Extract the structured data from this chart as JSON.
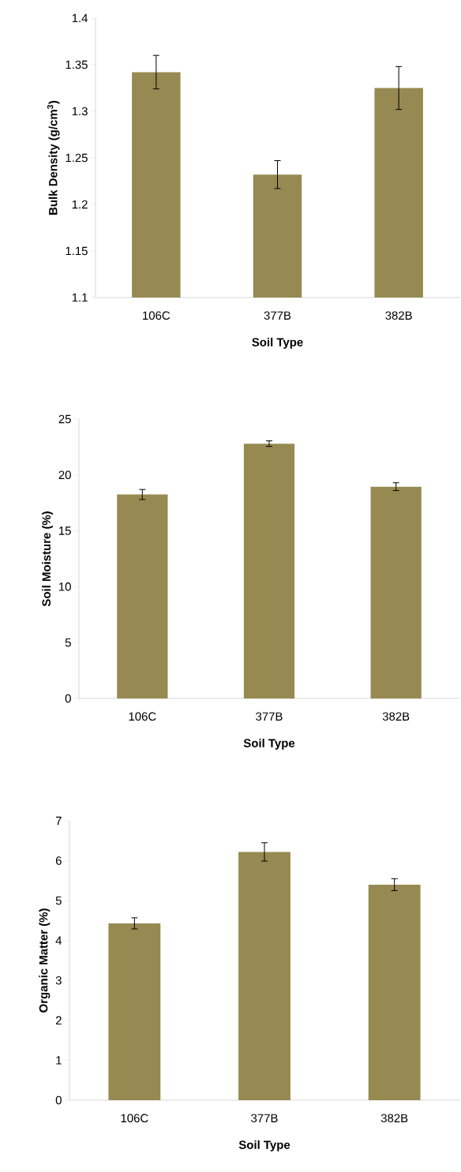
{
  "chart_data": [
    {
      "type": "bar",
      "categories": [
        "106C",
        "377B",
        "382B"
      ],
      "values": [
        1.342,
        1.232,
        1.325
      ],
      "errors": [
        0.018,
        0.015,
        0.023
      ],
      "color": "#968a52",
      "xlabel": "Soil Type",
      "ylabel": "Bulk Density (g/cm$^{3}$)",
      "ylim": [
        1.1,
        1.4
      ],
      "yticks": [
        1.1,
        1.15,
        1.2,
        1.25,
        1.3,
        1.35,
        1.4
      ]
    },
    {
      "type": "bar",
      "categories": [
        "106C",
        "377B",
        "382B"
      ],
      "values": [
        18.25,
        22.8,
        18.95
      ],
      "errors": [
        0.45,
        0.25,
        0.35
      ],
      "color": "#968a52",
      "xlabel": "Soil Type",
      "ylabel": "Soil Moisture (%)",
      "ylim": [
        0,
        25
      ],
      "yticks": [
        0,
        5,
        10,
        15,
        20,
        25
      ]
    },
    {
      "type": "bar",
      "categories": [
        "106C",
        "377B",
        "382B"
      ],
      "values": [
        4.43,
        6.22,
        5.4
      ],
      "errors": [
        0.14,
        0.23,
        0.15
      ],
      "color": "#968a52",
      "xlabel": "Soil Type",
      "ylabel": "Organic Matter (%)",
      "ylim": [
        0,
        7
      ],
      "yticks": [
        0,
        1,
        2,
        3,
        4,
        5,
        6,
        7
      ]
    }
  ]
}
